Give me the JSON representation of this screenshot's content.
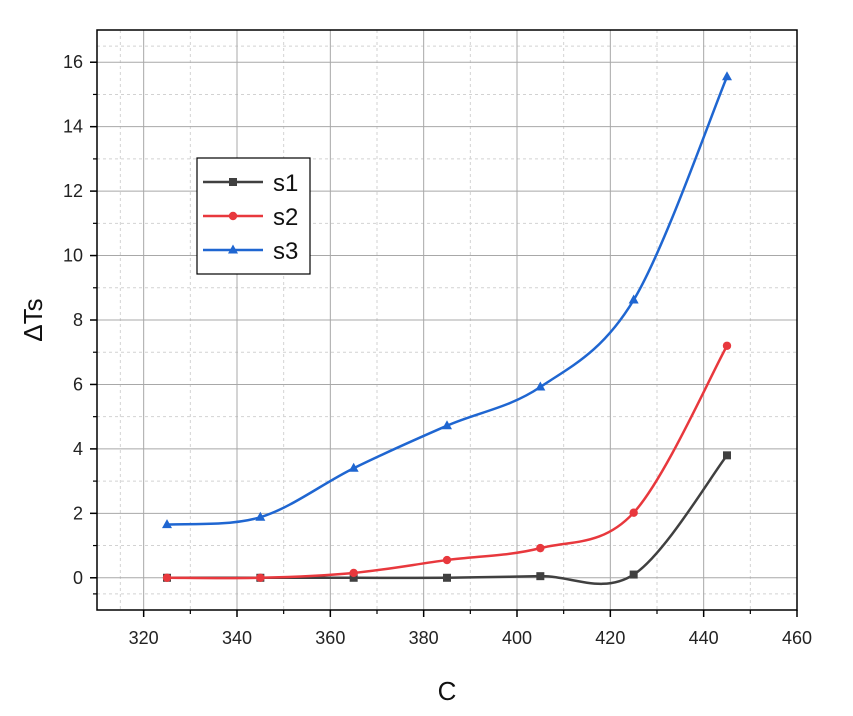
{
  "chart_data": {
    "type": "line",
    "title": "",
    "xlabel": "C",
    "ylabel": "ΔTs",
    "xlim": [
      310,
      460
    ],
    "ylim": [
      -1,
      17
    ],
    "xticks": [
      320,
      340,
      360,
      380,
      400,
      420,
      440,
      460
    ],
    "yticks": [
      0,
      2,
      4,
      6,
      8,
      10,
      12,
      14,
      16
    ],
    "grid": true,
    "legend_position": "upper-left",
    "x": [
      325,
      345,
      365,
      385,
      405,
      425,
      445
    ],
    "series": [
      {
        "name": "s1",
        "color": "#404040",
        "marker": "square",
        "values": [
          0,
          0,
          0,
          0,
          0.05,
          0.1,
          3.8
        ]
      },
      {
        "name": "s2",
        "color": "#e8383d",
        "marker": "circle",
        "values": [
          0,
          0,
          0.15,
          0.55,
          0.92,
          2.02,
          7.2
        ]
      },
      {
        "name": "s3",
        "color": "#1f66d1",
        "marker": "triangle",
        "values": [
          1.65,
          1.88,
          3.4,
          4.72,
          5.92,
          8.62,
          15.55
        ]
      }
    ]
  }
}
